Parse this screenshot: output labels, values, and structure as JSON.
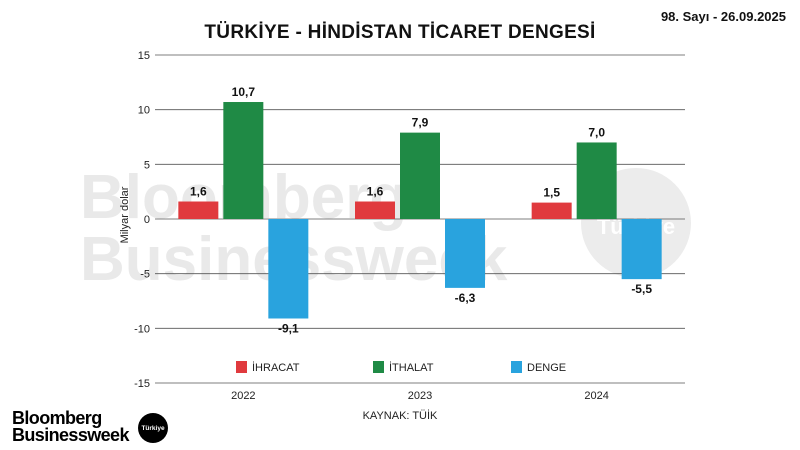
{
  "header": {
    "title": "TÜRKİYE - HİNDİSTAN TİCARET DENGESİ",
    "issue": "98. Sayı - 26.09.2025"
  },
  "source": "KAYNAK: TÜİK",
  "brand": {
    "line1": "Bloomberg",
    "line2": "Businessweek",
    "badge": "Türkiye"
  },
  "watermark": {
    "line1": "Bloomberg",
    "line2": "Businessweek",
    "badge": "Türkiye"
  },
  "colors": {
    "ihracat": "#e03a3e",
    "ithalat": "#1f8a45",
    "denge": "#29a3de",
    "grid": "#555555"
  },
  "chart_data": {
    "type": "bar",
    "title": "TÜRKİYE - HİNDİSTAN TİCARET DENGESİ",
    "ylabel": "Milyar dolar",
    "xlabel": "",
    "ylim": [
      -15,
      15
    ],
    "yticks": [
      -15,
      -10,
      -5,
      0,
      5,
      10,
      15
    ],
    "grid": true,
    "legend_position": "bottom",
    "categories": [
      "2022",
      "2023",
      "2024"
    ],
    "series": [
      {
        "name": "İHRACAT",
        "color": "#e03a3e",
        "values": [
          1.6,
          1.6,
          1.5
        ],
        "labels": [
          "1,6",
          "1,6",
          "1,5"
        ]
      },
      {
        "name": "İTHALAT",
        "color": "#1f8a45",
        "values": [
          10.7,
          7.9,
          7.0
        ],
        "labels": [
          "10,7",
          "7,9",
          "7,0"
        ]
      },
      {
        "name": "DENGE",
        "color": "#29a3de",
        "values": [
          -9.1,
          -6.3,
          -5.5
        ],
        "labels": [
          "-9,1",
          "-6,3",
          "-5,5"
        ]
      }
    ]
  }
}
